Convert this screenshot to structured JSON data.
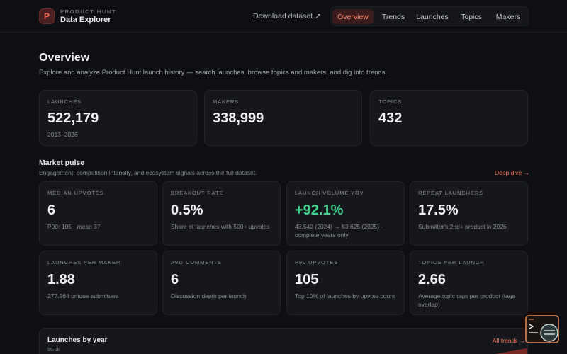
{
  "header": {
    "logo_letter": "P",
    "brand_sub": "PRODUCT HUNT",
    "brand_title": "Data Explorer",
    "download_label": "Download dataset ↗",
    "nav": [
      {
        "label": "Overview",
        "active": true
      },
      {
        "label": "Trends"
      },
      {
        "label": "Launches"
      },
      {
        "label": "Topics"
      },
      {
        "label": "Makers"
      }
    ]
  },
  "overview": {
    "title": "Overview",
    "description": "Explore and analyze Product Hunt launch history — search launches, browse topics and makers, and dig into trends.",
    "stats": [
      {
        "label": "LAUNCHES",
        "value": "522,179",
        "sub": "2013–2026"
      },
      {
        "label": "MAKERS",
        "value": "338,999",
        "sub": ""
      },
      {
        "label": "TOPICS",
        "value": "432",
        "sub": ""
      }
    ]
  },
  "market_pulse": {
    "title": "Market pulse",
    "description": "Engagement, competition intensity, and ecosystem signals across the full dataset.",
    "deep_dive": "Deep dive →",
    "cards": [
      {
        "label": "MEDIAN UPVOTES",
        "value": "6",
        "sub": "P90: 105 · mean 37"
      },
      {
        "label": "BREAKOUT RATE",
        "value": "0.5%",
        "sub": "Share of launches with 500+ upvotes"
      },
      {
        "label": "LAUNCH VOLUME YOY",
        "value": "+92.1%",
        "sub": "43,542 (2024) → 83,625 (2025) · complete years only",
        "accent": "#3fd38a"
      },
      {
        "label": "REPEAT LAUNCHERS",
        "value": "17.5%",
        "sub": "Submitter's 2nd+ product in 2026"
      },
      {
        "label": "LAUNCHES PER MAKER",
        "value": "1.88",
        "sub": "277,964 unique submitters"
      },
      {
        "label": "AVG COMMENTS",
        "value": "6",
        "sub": "Discussion depth per launch"
      },
      {
        "label": "P90 UPVOTES",
        "value": "105",
        "sub": "Top 10% of launches by upvote count"
      },
      {
        "label": "TOPICS PER LAUNCH",
        "value": "2.66",
        "sub": "Average topic tags per product (tags overlap)"
      }
    ]
  },
  "launches_by_year": {
    "title": "Launches by year",
    "link": "All trends →",
    "first_tick": "95.0k"
  },
  "colors": {
    "accent": "#ff6b4a",
    "positive": "#3fd38a",
    "background": "#0d0f13",
    "card": "#15171c"
  },
  "icons": {
    "floating_widget": "terminal-chat-icon"
  }
}
